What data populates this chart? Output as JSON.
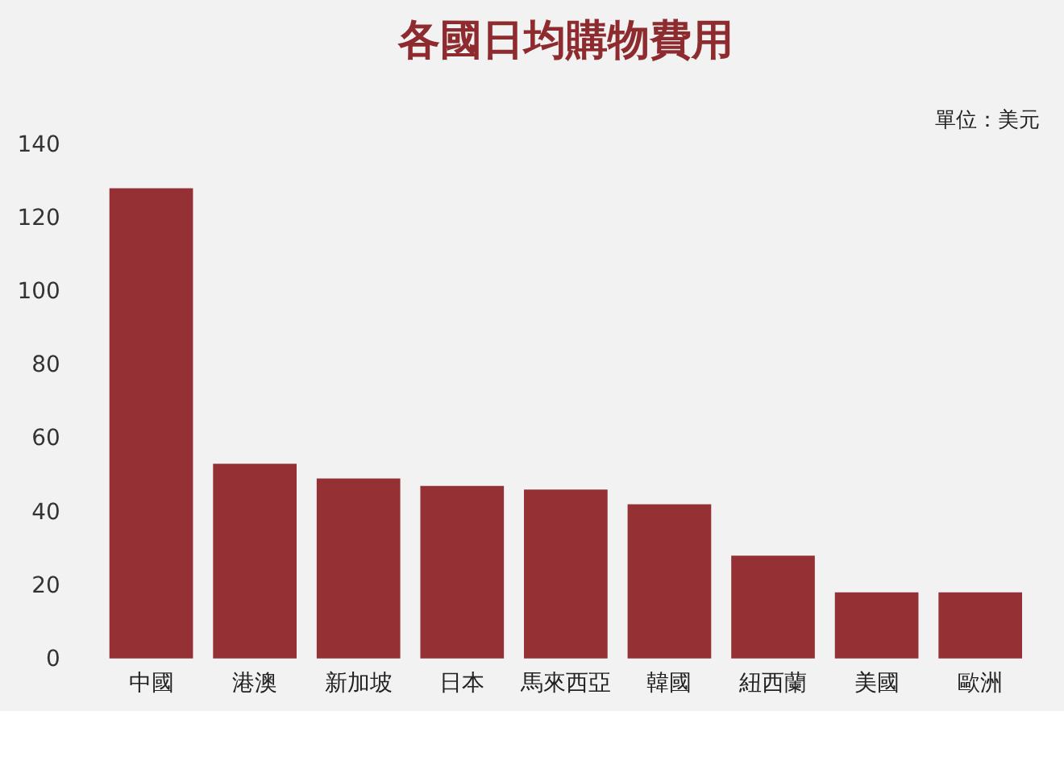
{
  "chart_data": {
    "type": "bar",
    "title": "各國日均購物費用",
    "annotations": [
      "單位：美元"
    ],
    "categories": [
      "中國",
      "港澳",
      "新加坡",
      "日本",
      "馬來西亞",
      "韓國",
      "紐西蘭",
      "美國",
      "歐洲"
    ],
    "values": [
      128,
      53,
      49,
      47,
      46,
      42,
      28,
      18,
      18
    ],
    "color": "#953034",
    "ylim": [
      0,
      140
    ],
    "yticks": [
      0,
      20,
      40,
      60,
      80,
      100,
      120,
      140
    ],
    "grid": false
  }
}
